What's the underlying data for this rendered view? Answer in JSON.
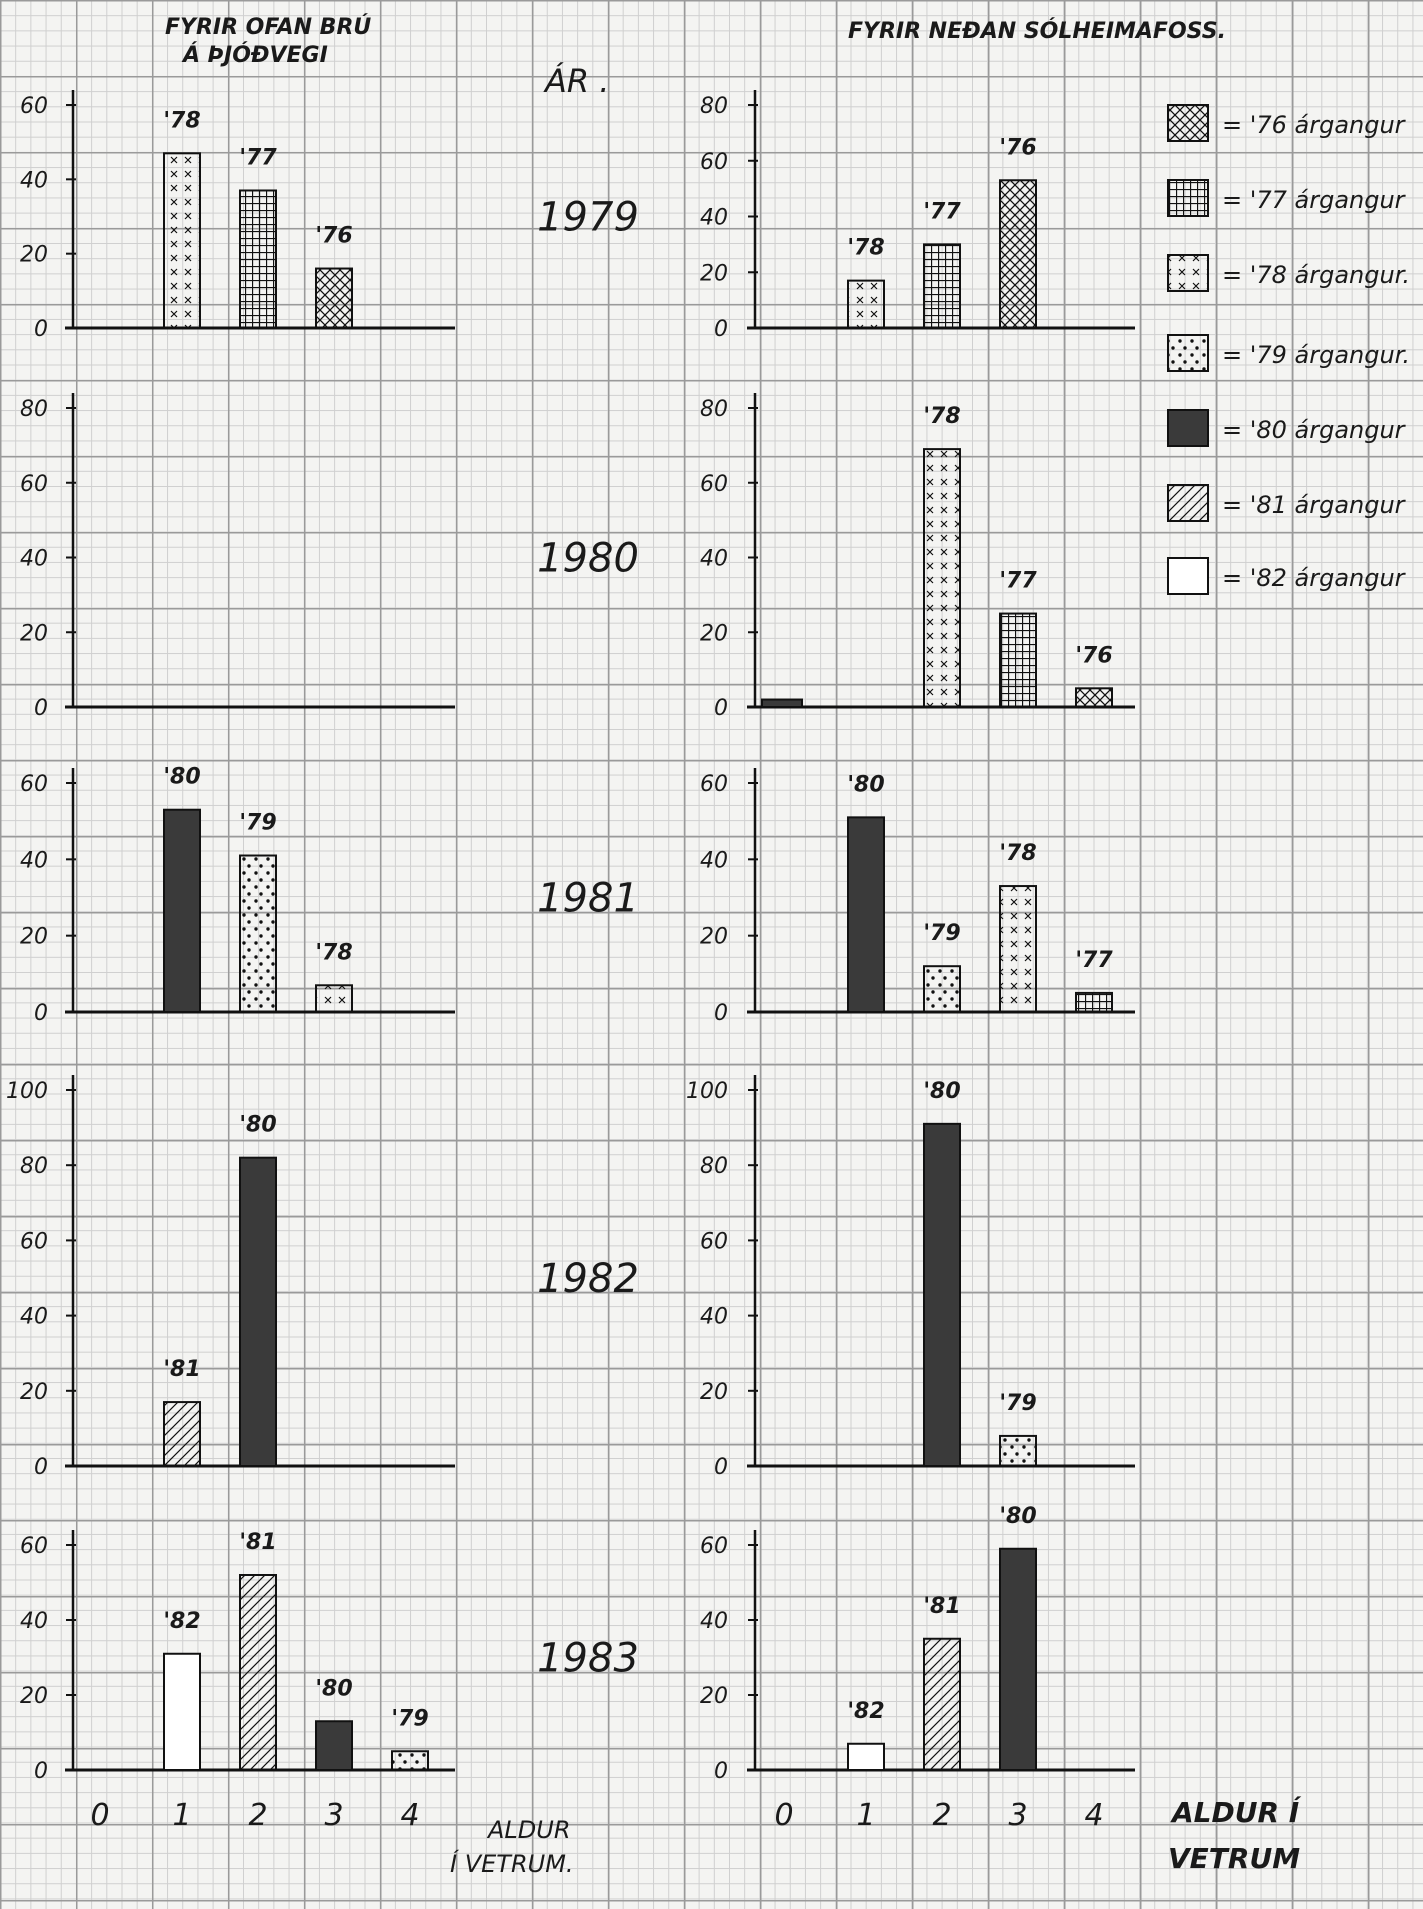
{
  "chart_data": {
    "type": "bar",
    "left_title_line1": "FYRIR OFAN BRÚ",
    "left_title_line2": "Á ÞJÓÐVEGI",
    "right_title": "FYRIR NEÐAN SÓLHEIMAFOSS.",
    "year_header": "ÁR .",
    "xlabel_left_line1": "ALDUR",
    "xlabel_left_line2": "Í VETRUM.",
    "xlabel_right_line1": "ALDUR Í",
    "xlabel_right_line2": "VETRUM",
    "x_ticks": [
      "0",
      "1",
      "2",
      "3",
      "4"
    ],
    "legend": [
      {
        "key": "76",
        "label": "= '76 árgangur",
        "pattern": "crosshatch"
      },
      {
        "key": "77",
        "label": "= '77 árgangur",
        "pattern": "grid"
      },
      {
        "key": "78",
        "label": "= '78 árgangur.",
        "pattern": "x"
      },
      {
        "key": "79",
        "label": "= '79 árgangur.",
        "pattern": "dots"
      },
      {
        "key": "80",
        "label": "= '80 árgangur",
        "pattern": "solid"
      },
      {
        "key": "81",
        "label": "= '81 árgangur",
        "pattern": "diagonal"
      },
      {
        "key": "82",
        "label": "= '82 árgangur",
        "pattern": "empty"
      }
    ],
    "rows": [
      {
        "year": "1979",
        "left": {
          "yticks": [
            "0",
            "20",
            "40",
            "60"
          ],
          "ymax": 60,
          "bars": [
            {
              "x": 1,
              "value": 47,
              "label": "'78",
              "key": "78"
            },
            {
              "x": 2,
              "value": 37,
              "label": "'77",
              "key": "77"
            },
            {
              "x": 3,
              "value": 16,
              "label": "'76",
              "key": "76"
            }
          ]
        },
        "right": {
          "yticks": [
            "0",
            "20",
            "40",
            "60",
            "80"
          ],
          "ymax": 80,
          "bars": [
            {
              "x": 1,
              "value": 17,
              "label": "'78",
              "key": "78"
            },
            {
              "x": 2,
              "value": 30,
              "label": "'77",
              "key": "77"
            },
            {
              "x": 3,
              "value": 53,
              "label": "'76",
              "key": "76"
            }
          ]
        }
      },
      {
        "year": "1980",
        "left": {
          "yticks": [
            "0",
            "20",
            "40",
            "60",
            "80"
          ],
          "ymax": 80,
          "bars": []
        },
        "right": {
          "yticks": [
            "0",
            "20",
            "40",
            "60",
            "80"
          ],
          "ymax": 80,
          "bars": [
            {
              "x": 0,
              "value": 2,
              "label": "",
              "key": "80"
            },
            {
              "x": 2,
              "value": 69,
              "label": "'78",
              "key": "78"
            },
            {
              "x": 3,
              "value": 25,
              "label": "'77",
              "key": "77"
            },
            {
              "x": 4,
              "value": 5,
              "label": "'76",
              "key": "76"
            }
          ]
        }
      },
      {
        "year": "1981",
        "left": {
          "yticks": [
            "0",
            "20",
            "40",
            "60"
          ],
          "ymax": 60,
          "bars": [
            {
              "x": 1,
              "value": 53,
              "label": "'80",
              "key": "80"
            },
            {
              "x": 2,
              "value": 41,
              "label": "'79",
              "key": "79"
            },
            {
              "x": 3,
              "value": 7,
              "label": "'78",
              "key": "78"
            }
          ]
        },
        "right": {
          "yticks": [
            "0",
            "20",
            "40",
            "60"
          ],
          "ymax": 60,
          "bars": [
            {
              "x": 1,
              "value": 51,
              "label": "'80",
              "key": "80"
            },
            {
              "x": 2,
              "value": 12,
              "label": "'79",
              "key": "79"
            },
            {
              "x": 3,
              "value": 33,
              "label": "'78",
              "key": "78"
            },
            {
              "x": 4,
              "value": 5,
              "label": "'77",
              "key": "77"
            }
          ]
        }
      },
      {
        "year": "1982",
        "left": {
          "yticks": [
            "0",
            "20",
            "40",
            "60",
            "80",
            "100"
          ],
          "ymax": 100,
          "bars": [
            {
              "x": 1,
              "value": 17,
              "label": "'81",
              "key": "81"
            },
            {
              "x": 2,
              "value": 82,
              "label": "'80",
              "key": "80"
            }
          ]
        },
        "right": {
          "yticks": [
            "0",
            "20",
            "40",
            "60",
            "80",
            "100"
          ],
          "ymax": 100,
          "bars": [
            {
              "x": 2,
              "value": 91,
              "label": "'80",
              "key": "80"
            },
            {
              "x": 3,
              "value": 8,
              "label": "'79",
              "key": "79"
            }
          ]
        }
      },
      {
        "year": "1983",
        "left": {
          "yticks": [
            "0",
            "20",
            "40",
            "60"
          ],
          "ymax": 60,
          "bars": [
            {
              "x": 1,
              "value": 31,
              "label": "'82",
              "key": "82"
            },
            {
              "x": 2,
              "value": 52,
              "label": "'81",
              "key": "81"
            },
            {
              "x": 3,
              "value": 13,
              "label": "'80",
              "key": "80"
            },
            {
              "x": 4,
              "value": 5,
              "label": "'79",
              "key": "79"
            }
          ]
        },
        "right": {
          "yticks": [
            "0",
            "20",
            "40",
            "60"
          ],
          "ymax": 60,
          "bars": [
            {
              "x": 1,
              "value": 7,
              "label": "'82",
              "key": "82"
            },
            {
              "x": 2,
              "value": 35,
              "label": "'81",
              "key": "81"
            },
            {
              "x": 3,
              "value": 59,
              "label": "'80",
              "key": "80"
            }
          ]
        }
      }
    ]
  }
}
